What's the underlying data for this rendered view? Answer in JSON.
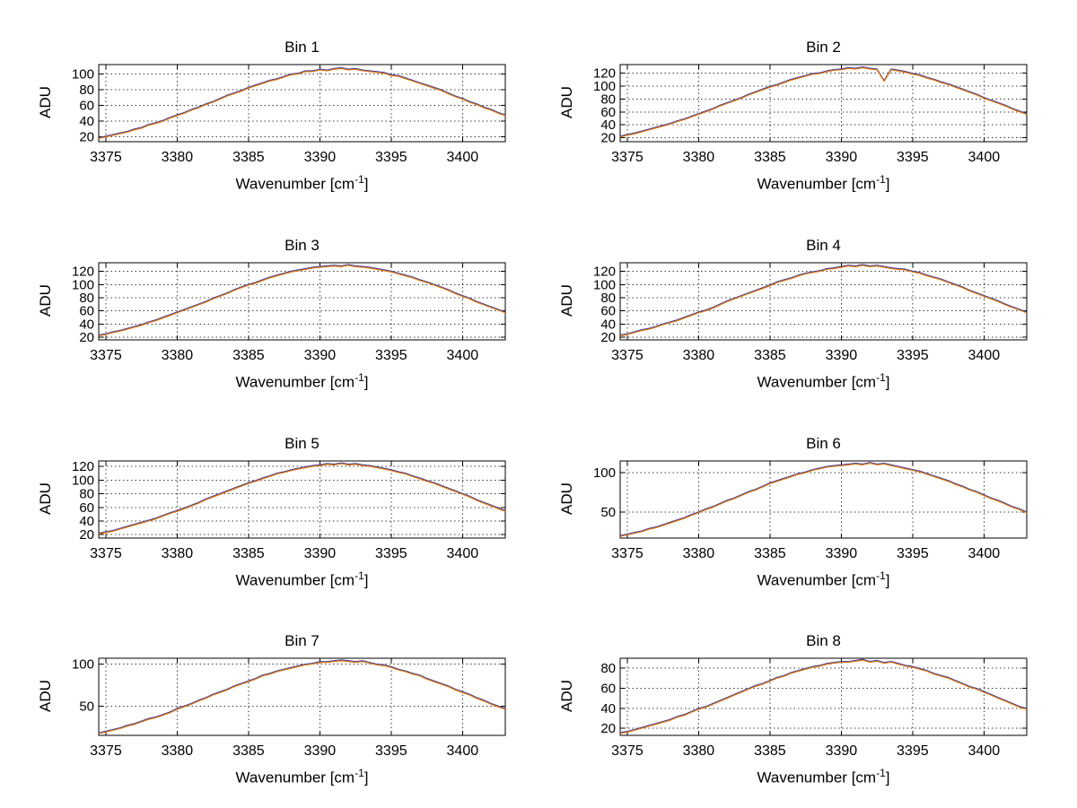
{
  "figure": {
    "background": "#ffffff",
    "axis_color": "#000000",
    "grid_color": "#3c3c3c",
    "text_color": "#000000",
    "trace_colors": [
      "#4040a0",
      "#e87600"
    ]
  },
  "labels": {
    "ylabel": "ADU",
    "xlabel_base": "Wavenumber [cm",
    "xlabel_sup": "-1",
    "xlabel_close": "]"
  },
  "chart_data": {
    "type": "line",
    "layout": "4x2 grid of subplots",
    "grid": "dotted",
    "legend": "none",
    "xlabel": "Wavenumber [cm^-1]",
    "ylabel": "ADU",
    "series_note": "each subplot shows two nearly identical overlapping traces (dark blue under orange)",
    "xlim": [
      3374.5,
      3403
    ],
    "xticks": [
      3375,
      3380,
      3385,
      3390,
      3395,
      3400
    ],
    "x": [
      3374.5,
      3375,
      3375.5,
      3376,
      3376.5,
      3377,
      3377.5,
      3378,
      3378.5,
      3379,
      3379.5,
      3380,
      3380.5,
      3381,
      3381.5,
      3382,
      3382.5,
      3383,
      3383.5,
      3384,
      3384.5,
      3385,
      3385.5,
      3386,
      3386.5,
      3387,
      3387.5,
      3388,
      3388.5,
      3389,
      3389.5,
      3390,
      3390.5,
      3391,
      3391.5,
      3392,
      3392.5,
      3393,
      3393.5,
      3394,
      3394.5,
      3395,
      3395.5,
      3396,
      3396.5,
      3397,
      3397.5,
      3398,
      3398.5,
      3399,
      3399.5,
      3400,
      3400.5,
      3401,
      3401.5,
      3402,
      3402.5,
      3403
    ],
    "plots": [
      {
        "title": "Bin 1",
        "yticks": [
          20,
          40,
          60,
          80,
          100
        ],
        "ylim": [
          14,
          112
        ],
        "values": [
          18,
          20,
          22,
          24,
          26,
          29,
          31,
          35,
          37,
          40,
          44,
          47,
          50,
          54,
          57,
          61,
          64,
          68,
          72,
          75,
          78,
          82,
          85,
          88,
          91,
          93,
          96,
          99,
          100,
          103,
          103,
          105,
          104,
          106,
          107,
          105,
          106,
          104,
          103,
          102,
          101,
          98,
          97,
          94,
          91,
          88,
          85,
          82,
          79,
          75,
          71,
          68,
          64,
          61,
          57,
          54,
          50,
          47
        ]
      },
      {
        "title": "Bin 2",
        "yticks": [
          20,
          40,
          60,
          80,
          100,
          120
        ],
        "ylim": [
          14,
          133
        ],
        "values": [
          21,
          24,
          26,
          29,
          32,
          35,
          38,
          41,
          45,
          48,
          52,
          56,
          60,
          64,
          69,
          73,
          77,
          81,
          86,
          90,
          94,
          98,
          101,
          105,
          109,
          112,
          115,
          118,
          119,
          122,
          124,
          125,
          127,
          126,
          128,
          126,
          125,
          107,
          125,
          123,
          121,
          118,
          116,
          112,
          109,
          105,
          102,
          98,
          94,
          90,
          86,
          81,
          77,
          73,
          69,
          64,
          60,
          56
        ]
      },
      {
        "title": "Bin 3",
        "yticks": [
          20,
          40,
          60,
          80,
          100,
          120
        ],
        "ylim": [
          16,
          133
        ],
        "values": [
          22,
          24,
          27,
          29,
          32,
          35,
          38,
          42,
          45,
          49,
          53,
          57,
          61,
          65,
          69,
          73,
          78,
          82,
          86,
          91,
          95,
          99,
          102,
          106,
          110,
          113,
          116,
          119,
          121,
          123,
          125,
          126,
          127,
          128,
          127,
          129,
          127,
          126,
          125,
          123,
          121,
          119,
          116,
          113,
          110,
          106,
          103,
          99,
          95,
          91,
          86,
          82,
          78,
          73,
          69,
          65,
          61,
          57
        ]
      },
      {
        "title": "Bin 4",
        "yticks": [
          20,
          40,
          60,
          80,
          100,
          120
        ],
        "ylim": [
          16,
          133
        ],
        "values": [
          22,
          24,
          27,
          30,
          32,
          35,
          39,
          42,
          45,
          49,
          53,
          57,
          60,
          64,
          69,
          74,
          78,
          82,
          86,
          90,
          94,
          98,
          103,
          106,
          109,
          113,
          116,
          118,
          120,
          123,
          124,
          126,
          128,
          127,
          129,
          127,
          128,
          126,
          124,
          123,
          122,
          119,
          117,
          113,
          110,
          107,
          103,
          99,
          95,
          90,
          86,
          82,
          78,
          74,
          69,
          65,
          61,
          57
        ]
      },
      {
        "title": "Bin 5",
        "yticks": [
          20,
          40,
          60,
          80,
          100,
          120
        ],
        "ylim": [
          15,
          128
        ],
        "values": [
          21,
          23,
          25,
          28,
          31,
          34,
          37,
          40,
          43,
          47,
          51,
          54,
          58,
          62,
          66,
          71,
          75,
          79,
          83,
          87,
          91,
          95,
          98,
          102,
          105,
          109,
          111,
          114,
          116,
          118,
          120,
          121,
          123,
          122,
          124,
          122,
          123,
          121,
          120,
          118,
          116,
          114,
          111,
          109,
          105,
          102,
          98,
          95,
          91,
          87,
          83,
          79,
          75,
          70,
          66,
          62,
          58,
          54
        ]
      },
      {
        "title": "Bin 6",
        "yticks": [
          50,
          100
        ],
        "ylim": [
          17,
          115
        ],
        "values": [
          19,
          21,
          23,
          25,
          28,
          30,
          33,
          36,
          39,
          42,
          46,
          49,
          53,
          56,
          60,
          64,
          67,
          71,
          75,
          78,
          82,
          86,
          89,
          92,
          95,
          98,
          100,
          103,
          105,
          107,
          108,
          109,
          110,
          111,
          110,
          112,
          110,
          111,
          109,
          107,
          105,
          103,
          101,
          98,
          95,
          92,
          89,
          85,
          82,
          78,
          75,
          71,
          67,
          64,
          60,
          56,
          53,
          49
        ]
      },
      {
        "title": "Bin 7",
        "yticks": [
          50,
          100
        ],
        "ylim": [
          15,
          107
        ],
        "values": [
          17,
          19,
          21,
          23,
          26,
          28,
          31,
          34,
          36,
          39,
          42,
          46,
          49,
          52,
          56,
          59,
          63,
          66,
          69,
          73,
          76,
          79,
          82,
          86,
          88,
          91,
          93,
          95,
          97,
          99,
          100,
          102,
          102,
          103,
          104,
          103,
          102,
          103,
          101,
          99,
          98,
          96,
          93,
          91,
          88,
          86,
          82,
          79,
          76,
          73,
          69,
          66,
          63,
          59,
          56,
          52,
          49,
          46
        ]
      },
      {
        "title": "Bin 8",
        "yticks": [
          20,
          40,
          60,
          80
        ],
        "ylim": [
          13,
          90
        ],
        "values": [
          15,
          16,
          18,
          20,
          22,
          24,
          26,
          28,
          31,
          33,
          36,
          39,
          41,
          44,
          47,
          50,
          53,
          56,
          59,
          62,
          64,
          67,
          70,
          72,
          75,
          77,
          79,
          81,
          82,
          84,
          85,
          86,
          86,
          87,
          88,
          86,
          87,
          85,
          86,
          84,
          82,
          81,
          79,
          77,
          74,
          72,
          70,
          67,
          64,
          61,
          59,
          56,
          53,
          50,
          47,
          44,
          41,
          39
        ]
      }
    ]
  }
}
